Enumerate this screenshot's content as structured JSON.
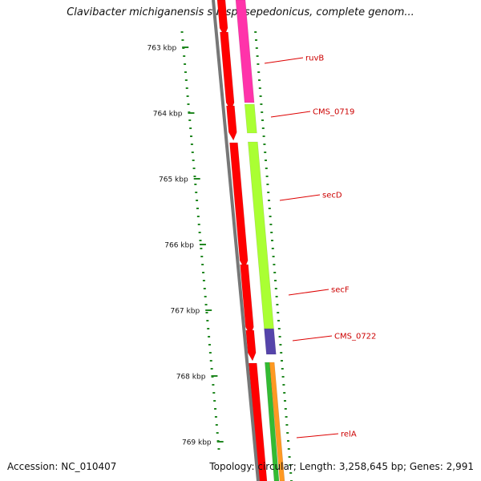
{
  "title": "Clavibacter michiganensis subsp. sepedonicus, complete genom...",
  "footer": {
    "accession": "Accession: NC_010407",
    "topology": "Topology: circular; Length: 3,258,645 bp; Genes: 2,991"
  },
  "scale": {
    "tick_labels": [
      "763 kbp",
      "764 kbp",
      "765 kbp",
      "766 kbp",
      "767 kbp",
      "768 kbp",
      "769 kbp"
    ]
  },
  "genes": [
    "ruvB",
    "CMS_0719",
    "secD",
    "secF",
    "CMS_0722",
    "relA"
  ],
  "colors": {
    "red": "#ff0000",
    "magenta": "#ff33aa",
    "lime": "#aaff33",
    "purple": "#5544aa",
    "green": "#33bb33",
    "orange": "#ff9922",
    "ticks": "#228822",
    "backbone": "#777777"
  }
}
